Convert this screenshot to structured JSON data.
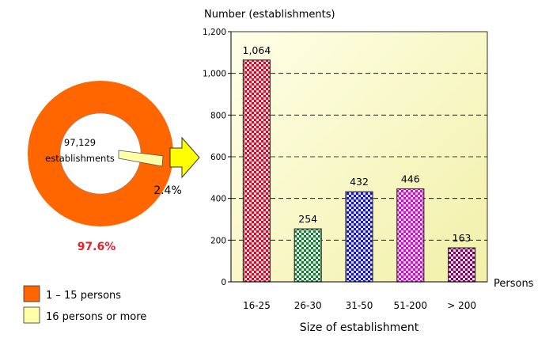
{
  "chart_data": [
    {
      "type": "pie",
      "style": "donut",
      "center_label_line1": "97,129",
      "center_label_line2": "establishments",
      "slices": [
        {
          "label": "1 – 15 persons",
          "value": 97.6,
          "value_label": "97.6%",
          "color": "#FF6600"
        },
        {
          "label": "16 persons or more",
          "value": 2.4,
          "value_label": "2.4%",
          "color": "#FFFFAA"
        }
      ],
      "legend": {
        "placement": "bottom-left",
        "entries": [
          {
            "label": "1 – 15 persons",
            "color": "#FF6600"
          },
          {
            "label": "16 persons or more",
            "color": "#FFFFAA"
          }
        ]
      },
      "pointer_arrow_color": "#FFFF00"
    },
    {
      "type": "bar",
      "ylabel": "Number (establishments)",
      "xlabel": "Size of establishment",
      "x_unit_label": "Persons",
      "categories": [
        "16-25",
        "26-30",
        "31-50",
        "51-200",
        "> 200"
      ],
      "values": [
        1064,
        254,
        432,
        446,
        163
      ],
      "value_labels": [
        "1,064",
        "254",
        "432",
        "446",
        "163"
      ],
      "bar_colors": [
        "#E8001C",
        "#1B7A3A",
        "#1010E0",
        "#E000E0",
        "#800060"
      ],
      "ylim": [
        0,
        1200
      ],
      "yticks": [
        0,
        200,
        400,
        600,
        800,
        1000,
        1200
      ],
      "ytick_labels": [
        "0",
        "200",
        "400",
        "600",
        "800",
        "1,000",
        "1,200"
      ],
      "grid": "horizontal dashed",
      "plot_background": [
        "#FFFFE8",
        "#F2F0A8"
      ]
    }
  ]
}
